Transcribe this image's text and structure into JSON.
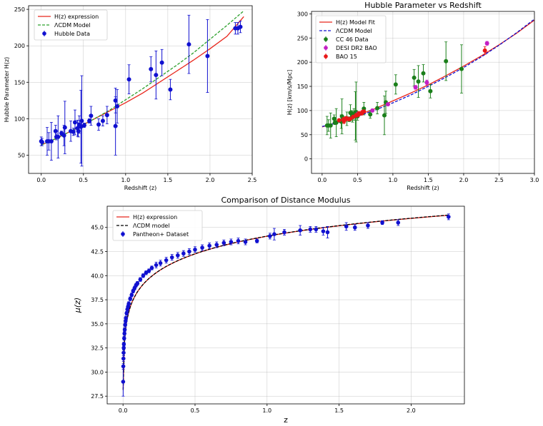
{
  "chart_data": [
    {
      "id": "p1",
      "type": "scatter",
      "title": "",
      "xlabel": "Redshift (z)",
      "ylabel": "Hubble Parameter H(z)",
      "xlim": [
        -0.15,
        2.5
      ],
      "ylim": [
        25,
        255
      ],
      "xticks": [
        0.0,
        0.5,
        1.0,
        1.5,
        2.0,
        2.5
      ],
      "xtick_labels": [
        "0.0",
        "0.5",
        "1.0",
        "1.5",
        "2.0",
        "2.5"
      ],
      "yticks": [
        50,
        100,
        150,
        200,
        250
      ],
      "ytick_labels": [
        "50",
        "100",
        "150",
        "200",
        "250"
      ],
      "grid": true,
      "legend_position": "top-left",
      "legend": [
        {
          "label": "H(z) expression",
          "style": "line",
          "color": "#e8261c"
        },
        {
          "label": "ΛCDM Model",
          "style": "dashed",
          "color": "#2ca02c"
        },
        {
          "label": "Hubble Data",
          "style": "marker",
          "color": "#1010d0"
        }
      ],
      "series": [
        {
          "name": "H(z) expression",
          "kind": "line",
          "color": "#e8261c",
          "x": [
            0,
            0.2,
            0.4,
            0.6,
            0.8,
            1.0,
            1.2,
            1.4,
            1.6,
            1.8,
            2.0,
            2.2,
            2.4
          ],
          "y": [
            64,
            74,
            86,
            98,
            110,
            122,
            135,
            150,
            165,
            180,
            196,
            213,
            240
          ]
        },
        {
          "name": "ΛCDM Model",
          "kind": "dashed",
          "color": "#2ca02c",
          "x": [
            0,
            0.2,
            0.4,
            0.6,
            0.8,
            1.0,
            1.2,
            1.4,
            1.6,
            1.8,
            2.0,
            2.2,
            2.4
          ],
          "y": [
            64,
            74,
            86,
            98,
            111,
            126,
            141,
            157,
            173,
            190,
            209,
            228,
            248
          ]
        },
        {
          "name": "Hubble Data",
          "kind": "errorbar",
          "color": "#1010d0",
          "points": [
            [
              0.0,
              69,
              6
            ],
            [
              0.01,
              68,
              5
            ],
            [
              0.07,
              69,
              19
            ],
            [
              0.09,
              69,
              12
            ],
            [
              0.12,
              69,
              26
            ],
            [
              0.17,
              83,
              8
            ],
            [
              0.18,
              75,
              4
            ],
            [
              0.2,
              75,
              29
            ],
            [
              0.24,
              80,
              3
            ],
            [
              0.27,
              77,
              14
            ],
            [
              0.28,
              88,
              36
            ],
            [
              0.35,
              83,
              14
            ],
            [
              0.38,
              82,
              5
            ],
            [
              0.4,
              95,
              17
            ],
            [
              0.43,
              87,
              11
            ],
            [
              0.44,
              83,
              8
            ],
            [
              0.45,
              92,
              12
            ],
            [
              0.47,
              89,
              50
            ],
            [
              0.48,
              97,
              62
            ],
            [
              0.51,
              91,
              3
            ],
            [
              0.57,
              97,
              3
            ],
            [
              0.59,
              104,
              13
            ],
            [
              0.68,
              92,
              8
            ],
            [
              0.73,
              97,
              7
            ],
            [
              0.78,
              105,
              12
            ],
            [
              0.88,
              90,
              40
            ],
            [
              0.88,
              125,
              17
            ],
            [
              0.9,
              117,
              23
            ],
            [
              1.04,
              154,
              20
            ],
            [
              1.3,
              168,
              17
            ],
            [
              1.36,
              160,
              33
            ],
            [
              1.43,
              177,
              18
            ],
            [
              1.53,
              140,
              14
            ],
            [
              1.75,
              202,
              40
            ],
            [
              1.97,
              186,
              50
            ],
            [
              2.3,
              224,
              8
            ],
            [
              2.33,
              224,
              8
            ],
            [
              2.36,
              226,
              8
            ]
          ]
        }
      ]
    },
    {
      "id": "p2",
      "type": "scatter",
      "title": "Hubble Parameter vs Redshift",
      "xlabel": "Redshift (z)",
      "ylabel": "H(z) [km/s/Mpc]",
      "xlim": [
        -0.15,
        3.0
      ],
      "ylim": [
        -30,
        305
      ],
      "xticks": [
        0.0,
        0.5,
        1.0,
        1.5,
        2.0,
        2.5,
        3.0
      ],
      "xtick_labels": [
        "0.0",
        "0.5",
        "1.0",
        "1.5",
        "2.0",
        "2.5",
        "3.0"
      ],
      "yticks": [
        0,
        50,
        100,
        150,
        200,
        250,
        300
      ],
      "ytick_labels": [
        "0",
        "50",
        "100",
        "150",
        "200",
        "250",
        "300"
      ],
      "grid": true,
      "legend_position": "top-left",
      "legend": [
        {
          "label": "H(z) Model Fit",
          "style": "line",
          "color": "#e8261c"
        },
        {
          "label": "ΛCDM Model",
          "style": "dashed",
          "color": "#1010d0"
        },
        {
          "label": "CC 46 Data",
          "style": "marker",
          "color": "#1a7f1a"
        },
        {
          "label": "DESI DR2 BAO",
          "style": "marker",
          "color": "#c41fc4"
        },
        {
          "label": "BAO 15",
          "style": "marker",
          "color": "#e81818"
        }
      ],
      "series": [
        {
          "name": "H(z) Model Fit",
          "kind": "line",
          "color": "#e8261c",
          "x": [
            0,
            0.25,
            0.5,
            0.75,
            1.0,
            1.25,
            1.5,
            1.75,
            2.0,
            2.25,
            2.5,
            2.75,
            3.0
          ],
          "y": [
            66,
            77,
            90,
            104,
            120,
            136,
            153,
            172,
            192,
            213,
            236,
            260,
            287
          ]
        },
        {
          "name": "ΛCDM Model",
          "kind": "dashed",
          "color": "#1010d0",
          "x": [
            0,
            0.25,
            0.5,
            0.75,
            1.0,
            1.25,
            1.5,
            1.75,
            2.0,
            2.25,
            2.5,
            2.75,
            3.0
          ],
          "y": [
            67,
            76,
            88,
            101,
            116,
            132,
            150,
            169,
            189,
            211,
            235,
            261,
            289
          ]
        },
        {
          "name": "CC 46 Data",
          "kind": "errorbar",
          "color": "#1a7f1a",
          "points": [
            [
              0.07,
              69,
              19
            ],
            [
              0.09,
              69,
              12
            ],
            [
              0.12,
              69,
              26
            ],
            [
              0.17,
              83,
              8
            ],
            [
              0.18,
              75,
              4
            ],
            [
              0.2,
              75,
              29
            ],
            [
              0.27,
              77,
              14
            ],
            [
              0.28,
              88,
              36
            ],
            [
              0.35,
              83,
              14
            ],
            [
              0.38,
              82,
              5
            ],
            [
              0.4,
              95,
              17
            ],
            [
              0.43,
              87,
              11
            ],
            [
              0.45,
              92,
              12
            ],
            [
              0.47,
              89,
              50
            ],
            [
              0.48,
              97,
              62
            ],
            [
              0.59,
              104,
              13
            ],
            [
              0.68,
              92,
              8
            ],
            [
              0.78,
              105,
              12
            ],
            [
              0.88,
              90,
              40
            ],
            [
              0.9,
              117,
              23
            ],
            [
              1.04,
              154,
              20
            ],
            [
              1.3,
              168,
              17
            ],
            [
              1.36,
              160,
              33
            ],
            [
              1.43,
              177,
              18
            ],
            [
              1.53,
              140,
              14
            ],
            [
              1.75,
              202,
              40
            ],
            [
              1.97,
              186,
              50
            ],
            [
              0.42,
              94,
              6
            ],
            [
              0.5,
              88,
              8
            ],
            [
              0.3,
              81,
              6
            ]
          ]
        },
        {
          "name": "DESI DR2 BAO",
          "kind": "errorbar",
          "color": "#c41fc4",
          "points": [
            [
              0.51,
              94,
              3
            ],
            [
              0.71,
              100,
              3
            ],
            [
              0.93,
              113,
              3
            ],
            [
              1.32,
              148,
              4
            ],
            [
              1.48,
              158,
              5
            ],
            [
              2.33,
              239,
              4
            ]
          ]
        },
        {
          "name": "BAO 15",
          "kind": "errorbar",
          "color": "#e81818",
          "points": [
            [
              0.24,
              80,
              3
            ],
            [
              0.3,
              81,
              5
            ],
            [
              0.31,
              78,
              5
            ],
            [
              0.34,
              84,
              4
            ],
            [
              0.35,
              83,
              4
            ],
            [
              0.38,
              82,
              3
            ],
            [
              0.4,
              83,
              3
            ],
            [
              0.44,
              87,
              3
            ],
            [
              0.48,
              90,
              4
            ],
            [
              0.51,
              91,
              3
            ],
            [
              0.52,
              94,
              4
            ],
            [
              0.56,
              94,
              3
            ],
            [
              0.57,
              97,
              3
            ],
            [
              0.59,
              98,
              3
            ],
            [
              2.3,
              224,
              8
            ]
          ]
        }
      ]
    },
    {
      "id": "p3",
      "type": "scatter",
      "title": "Comparison of Distance Modulus",
      "xlabel": "z",
      "ylabel": "μ(z)",
      "xlim": [
        -0.11,
        2.37
      ],
      "ylim": [
        26.7,
        47.2
      ],
      "xticks": [
        0.0,
        0.5,
        1.0,
        1.5,
        2.0
      ],
      "xtick_labels": [
        "0.0",
        "0.5",
        "1.0",
        "1.5",
        "2.0"
      ],
      "yticks": [
        27.5,
        30.0,
        32.5,
        35.0,
        37.5,
        40.0,
        42.5,
        45.0
      ],
      "ytick_labels": [
        "27.5",
        "30.0",
        "32.5",
        "35.0",
        "37.5",
        "40.0",
        "42.5",
        "45.0"
      ],
      "grid": true,
      "legend_position": "top-left",
      "legend": [
        {
          "label": "H(z) expression",
          "style": "line",
          "color": "#e8261c"
        },
        {
          "label": "ΛCDM model",
          "style": "dashed",
          "color": "#000000"
        },
        {
          "label": "Pantheon+ Dataset",
          "style": "marker",
          "color": "#1010d0"
        }
      ],
      "series": [
        {
          "name": "H(z) expression",
          "kind": "line",
          "color": "#e8261c",
          "model": "distance_modulus"
        },
        {
          "name": "ΛCDM model",
          "kind": "dashed",
          "color": "#000000",
          "model": "distance_modulus"
        },
        {
          "name": "Pantheon+ Dataset",
          "kind": "errorbar",
          "color": "#1010d0",
          "points": [
            [
              0.001,
              29.0,
              1.5
            ],
            [
              0.002,
              30.6,
              0.3
            ],
            [
              0.003,
              31.4,
              0.3
            ],
            [
              0.004,
              32.0,
              0.3
            ],
            [
              0.005,
              32.5,
              0.2
            ],
            [
              0.006,
              32.9,
              0.2
            ],
            [
              0.008,
              33.5,
              0.2
            ],
            [
              0.01,
              34.0,
              0.2
            ],
            [
              0.012,
              34.4,
              0.2
            ],
            [
              0.015,
              34.9,
              0.2
            ],
            [
              0.018,
              35.3,
              0.2
            ],
            [
              0.02,
              35.6,
              0.2
            ],
            [
              0.025,
              36.1,
              0.2
            ],
            [
              0.03,
              36.5,
              0.2
            ],
            [
              0.035,
              36.8,
              0.2
            ],
            [
              0.04,
              37.1,
              0.2
            ],
            [
              0.05,
              37.6,
              0.2
            ],
            [
              0.06,
              38.0,
              0.2
            ],
            [
              0.07,
              38.4,
              0.2
            ],
            [
              0.08,
              38.7,
              0.2
            ],
            [
              0.09,
              39.0,
              0.2
            ],
            [
              0.1,
              39.2,
              0.2
            ],
            [
              0.12,
              39.6,
              0.2
            ],
            [
              0.14,
              40.0,
              0.2
            ],
            [
              0.16,
              40.3,
              0.2
            ],
            [
              0.18,
              40.5,
              0.2
            ],
            [
              0.2,
              40.8,
              0.2
            ],
            [
              0.23,
              41.1,
              0.3
            ],
            [
              0.26,
              41.3,
              0.3
            ],
            [
              0.3,
              41.6,
              0.3
            ],
            [
              0.34,
              41.9,
              0.3
            ],
            [
              0.38,
              42.1,
              0.3
            ],
            [
              0.42,
              42.3,
              0.3
            ],
            [
              0.46,
              42.5,
              0.3
            ],
            [
              0.5,
              42.7,
              0.3
            ],
            [
              0.55,
              42.9,
              0.3
            ],
            [
              0.6,
              43.1,
              0.3
            ],
            [
              0.65,
              43.2,
              0.3
            ],
            [
              0.7,
              43.4,
              0.3
            ],
            [
              0.75,
              43.5,
              0.3
            ],
            [
              0.8,
              43.6,
              0.3
            ],
            [
              0.85,
              43.5,
              0.3
            ],
            [
              0.93,
              43.6,
              0.2
            ],
            [
              1.02,
              44.1,
              0.3
            ],
            [
              1.05,
              44.3,
              0.6
            ],
            [
              1.12,
              44.5,
              0.3
            ],
            [
              1.23,
              44.7,
              0.5
            ],
            [
              1.3,
              44.8,
              0.3
            ],
            [
              1.34,
              44.8,
              0.3
            ],
            [
              1.39,
              44.6,
              0.4
            ],
            [
              1.42,
              44.5,
              0.6
            ],
            [
              1.55,
              45.1,
              0.4
            ],
            [
              1.61,
              45.0,
              0.3
            ],
            [
              1.7,
              45.2,
              0.3
            ],
            [
              1.8,
              45.5,
              0.2
            ],
            [
              1.91,
              45.5,
              0.3
            ],
            [
              2.26,
              46.1,
              0.3
            ]
          ]
        }
      ]
    }
  ]
}
